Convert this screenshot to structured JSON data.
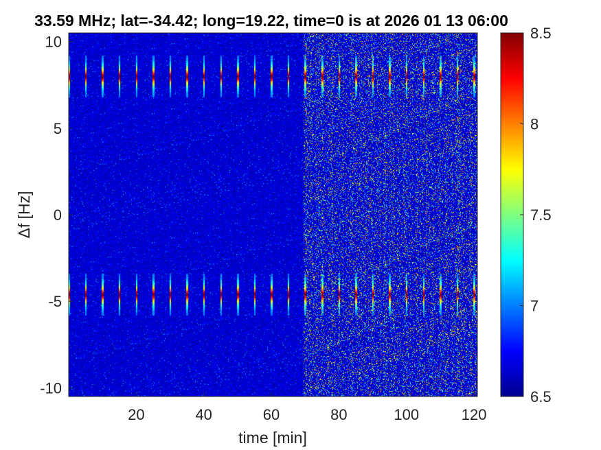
{
  "chart_data": {
    "type": "heatmap",
    "title": "33.59 MHz;  lat=-34.42; long=19.22, time=0 is at 2026 01 13 06:00",
    "xlabel": "time [min]",
    "ylabel": "Δf [Hz]",
    "xlim": [
      0,
      121
    ],
    "ylim": [
      -10.5,
      10.5
    ],
    "x_ticks": [
      20,
      40,
      60,
      80,
      100,
      120
    ],
    "x_tick_labels": [
      "20",
      "40",
      "60",
      "80",
      "100",
      "120"
    ],
    "y_ticks": [
      -10,
      -5,
      0,
      5,
      10
    ],
    "y_tick_labels": [
      "-10",
      "-5",
      "0",
      "5",
      "10"
    ],
    "colorbar": {
      "colormap": "jet",
      "clim": [
        6.5,
        8.5
      ],
      "ticks": [
        6.5,
        7,
        7.5,
        8,
        8.5
      ],
      "tick_labels": [
        "6.5",
        "7",
        "7.5",
        "8",
        "8.5"
      ]
    },
    "background_level": 6.65,
    "noise_regime_change_min": 69.5,
    "signal_bands_hz": [
      8,
      -4.6
    ],
    "signal_band_halfwidth_hz": 1.2,
    "signal_pulse_times_min": [
      0,
      5,
      10,
      15,
      20,
      25,
      30,
      35,
      40,
      45,
      50,
      55,
      60,
      65,
      70,
      75,
      80,
      85,
      90,
      95,
      100,
      105,
      110,
      115,
      120
    ],
    "peak_level": 8.5
  },
  "colors": {
    "jet_stops": [
      "#00008f",
      "#0000ff",
      "#00ffff",
      "#ffff00",
      "#ff0000",
      "#800000"
    ]
  }
}
